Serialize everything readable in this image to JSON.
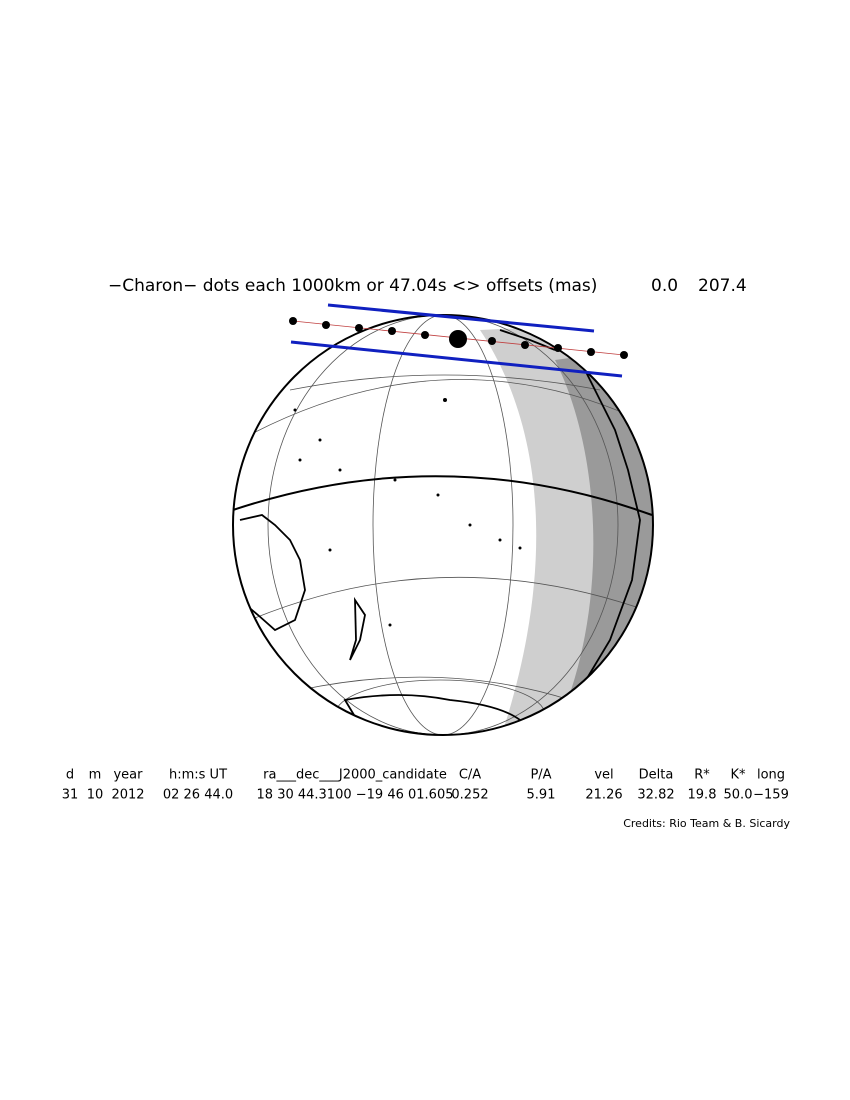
{
  "title": {
    "text": "−Charon− dots each 1000km or 47.04s <> offsets (mas)",
    "offset_x": "0.0",
    "offset_y": "207.4"
  },
  "table": {
    "headers": [
      "d",
      "m",
      "year",
      "h:m:s UT",
      "ra___dec___J2000_candidate",
      "C/A",
      "P/A",
      "vel",
      "Delta",
      "R*",
      "K*",
      "long"
    ],
    "values": [
      "31",
      "10",
      "2012",
      "02 26 44.0",
      "18 30 44.3100 −19 46 01.605",
      "0.252",
      "5.91",
      "21.26",
      "32.82",
      "19.8",
      "50.0",
      "−159"
    ]
  },
  "credits": "Credits: Rio Team & B. Sicardy"
}
